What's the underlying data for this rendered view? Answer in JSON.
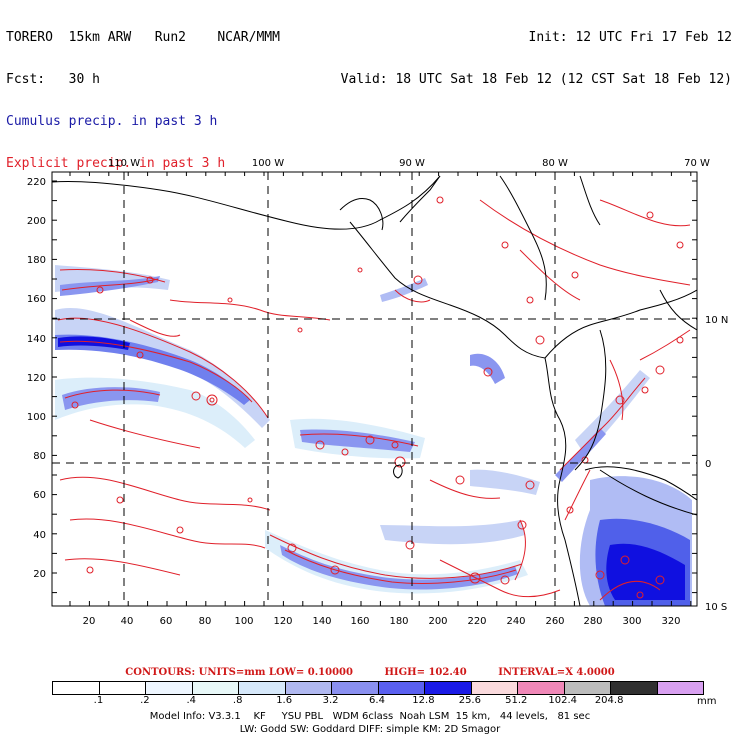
{
  "header": {
    "line1_left": "TORERO  15km ARW   Run2    NCAR/MMM",
    "line2_left": "Fcst:   30 h",
    "line1_right": "Init: 12 UTC Fri 17 Feb 12",
    "line2_right": "Valid: 18 UTC Sat 18 Feb 12 (12 CST Sat 18 Feb 12)",
    "legend_cumulus": "Cumulus precip. in past 3 h",
    "legend_explicit": "Explicit precip. in past 3 h"
  },
  "map": {
    "top_lon_labels": [
      "110 W",
      "100 W",
      "90 W",
      "80 W",
      "70 W"
    ],
    "right_lat_labels": [
      "10 N",
      "0",
      "10 S"
    ],
    "y_ticks": [
      "220",
      "200",
      "180",
      "160",
      "140",
      "120",
      "100",
      "80",
      "60",
      "40",
      "20"
    ],
    "x_ticks": [
      "20",
      "40",
      "60",
      "80",
      "100",
      "120",
      "140",
      "160",
      "180",
      "200",
      "220",
      "240",
      "260",
      "280",
      "300",
      "320"
    ],
    "colors": {
      "land_outline": "#000000",
      "explicit_contour": "#e0202a",
      "cumulus_light": "#dceefa",
      "cumulus_mid": "#9aa8f0",
      "cumulus_strong": "#5060ea",
      "cumulus_max": "#1010e0"
    }
  },
  "contours_line": {
    "units": "CONTOURS:  UNITS=mm  LOW= 0.10000",
    "high": "HIGH=  102.40",
    "interval": "INTERVAL=X  4.0000"
  },
  "colorbar": {
    "colors": [
      "#ffffff",
      "#ffffff",
      "#eef6ff",
      "#e8f8f8",
      "#d6e8fa",
      "#b0b8f0",
      "#8a90f0",
      "#5a60f0",
      "#1a1ae6",
      "#fadadd",
      "#f088b8",
      "#bcbcbc",
      "#303030",
      "#d8a0f0"
    ],
    "labels": [
      ".1",
      ".2",
      ".4",
      ".8",
      "1.6",
      "3.2",
      "6.4",
      "12.8",
      "25.6",
      "51.2",
      "102.4",
      "204.8"
    ],
    "unit": "mm"
  },
  "model_info": {
    "line1": "Model Info: V3.3.1    KF     YSU PBL   WDM 6class  Noah LSM  15 km,   44 levels,   81 sec",
    "line2": "LW: Godd SW: Goddard DIFF: simple KM: 2D Smagor"
  }
}
